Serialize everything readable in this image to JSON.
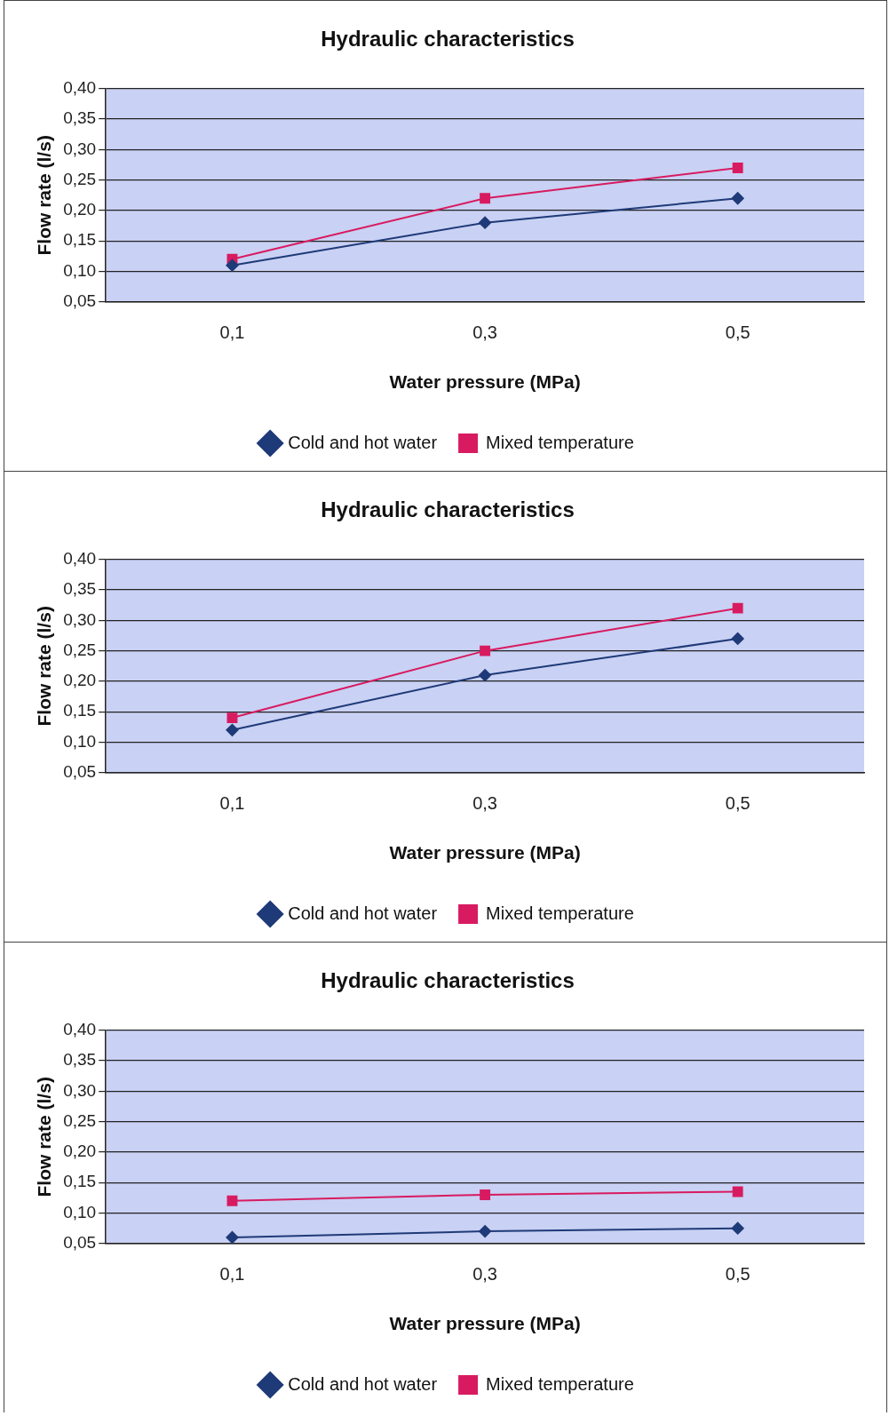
{
  "chart_data": [
    {
      "type": "line",
      "title": "Hydraulic characteristics",
      "xlabel": "Water pressure (MPa)",
      "ylabel": "Flow rate (l/s)",
      "categories": [
        "0,1",
        "0,3",
        "0,5"
      ],
      "ylim": [
        0.05,
        0.4
      ],
      "yticks": [
        {
          "value": 0.05,
          "label": "0,05"
        },
        {
          "value": 0.1,
          "label": "0,10"
        },
        {
          "value": 0.15,
          "label": "0,15"
        },
        {
          "value": 0.2,
          "label": "0,20"
        },
        {
          "value": 0.25,
          "label": "0,25"
        },
        {
          "value": 0.3,
          "label": "0,30"
        },
        {
          "value": 0.35,
          "label": "0,35"
        },
        {
          "value": 0.4,
          "label": "0,40"
        }
      ],
      "grid": "y",
      "legend": "bottom",
      "series": [
        {
          "name": "Cold and hot water",
          "color": "#1f3a78",
          "marker": "diamond",
          "values": [
            0.11,
            0.18,
            0.22
          ]
        },
        {
          "name": "Mixed temperature",
          "color": "#d81b60",
          "marker": "square",
          "values": [
            0.12,
            0.22,
            0.27
          ]
        }
      ]
    },
    {
      "type": "line",
      "title": "Hydraulic characteristics",
      "xlabel": "Water pressure (MPa)",
      "ylabel": "Flow rate (l/s)",
      "categories": [
        "0,1",
        "0,3",
        "0,5"
      ],
      "ylim": [
        0.05,
        0.4
      ],
      "yticks": [
        {
          "value": 0.05,
          "label": "0,05"
        },
        {
          "value": 0.1,
          "label": "0,10"
        },
        {
          "value": 0.15,
          "label": "0,15"
        },
        {
          "value": 0.2,
          "label": "0,20"
        },
        {
          "value": 0.25,
          "label": "0,25"
        },
        {
          "value": 0.3,
          "label": "0,30"
        },
        {
          "value": 0.35,
          "label": "0,35"
        },
        {
          "value": 0.4,
          "label": "0,40"
        }
      ],
      "grid": "y",
      "legend": "bottom",
      "series": [
        {
          "name": "Cold and hot water",
          "color": "#1f3a78",
          "marker": "diamond",
          "values": [
            0.12,
            0.21,
            0.27
          ]
        },
        {
          "name": "Mixed temperature",
          "color": "#d81b60",
          "marker": "square",
          "values": [
            0.14,
            0.25,
            0.32
          ]
        }
      ]
    },
    {
      "type": "line",
      "title": "Hydraulic characteristics",
      "xlabel": "Water pressure (MPa)",
      "ylabel": "Flow rate (l/s)",
      "categories": [
        "0,1",
        "0,3",
        "0,5"
      ],
      "ylim": [
        0.05,
        0.4
      ],
      "yticks": [
        {
          "value": 0.05,
          "label": "0,05"
        },
        {
          "value": 0.1,
          "label": "0,10"
        },
        {
          "value": 0.15,
          "label": "0,15"
        },
        {
          "value": 0.2,
          "label": "0,20"
        },
        {
          "value": 0.25,
          "label": "0,25"
        },
        {
          "value": 0.3,
          "label": "0,30"
        },
        {
          "value": 0.35,
          "label": "0,35"
        },
        {
          "value": 0.4,
          "label": "0,40"
        }
      ],
      "grid": "y",
      "legend": "bottom",
      "series": [
        {
          "name": "Cold and hot water",
          "color": "#1f3a78",
          "marker": "diamond",
          "values": [
            0.06,
            0.07,
            0.075
          ]
        },
        {
          "name": "Mixed temperature",
          "color": "#d81b60",
          "marker": "square",
          "values": [
            0.12,
            0.13,
            0.135
          ]
        }
      ]
    }
  ]
}
